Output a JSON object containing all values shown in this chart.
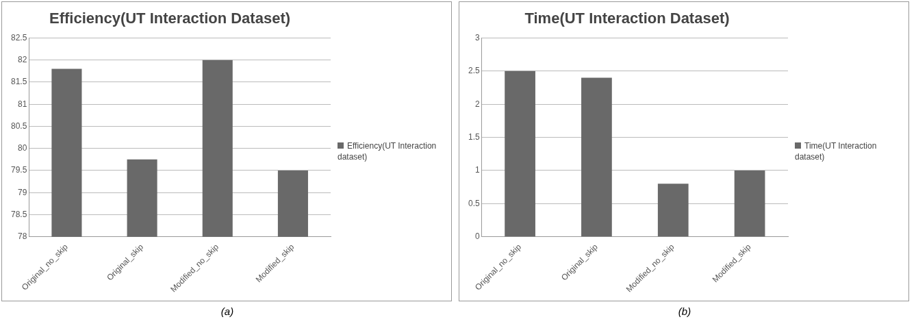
{
  "chart_data": [
    {
      "type": "bar",
      "title": "Efficiency(UT Interaction Dataset)",
      "categories": [
        "Original_no_skip",
        "Original_skip",
        "Modified_no_skip",
        "Modified_skip"
      ],
      "series": [
        {
          "name": "Efficiency(UT Interaction dataset)",
          "color": "#696969",
          "values": [
            81.8,
            79.75,
            82,
            79.5
          ]
        }
      ],
      "ylim": [
        78,
        82.5
      ],
      "yticks": [
        78,
        78.5,
        79,
        79.5,
        80,
        80.5,
        81,
        81.5,
        82,
        82.5
      ],
      "grid": "y",
      "legend": "right",
      "annotations": [
        "(a)"
      ]
    },
    {
      "type": "bar",
      "title": "Time(UT Interaction Dataset)",
      "categories": [
        "Original_no_skip",
        "Original_skip",
        "Modified_no_skip",
        "Modified_skip"
      ],
      "series": [
        {
          "name": "Time(UT Interaction dataset)",
          "color": "#696969",
          "values": [
            2.5,
            2.4,
            0.8,
            1.0
          ]
        }
      ],
      "ylim": [
        0,
        3
      ],
      "yticks": [
        0,
        0.5,
        1,
        1.5,
        2,
        2.5,
        3
      ],
      "grid": "y",
      "legend": "right",
      "annotations": [
        "(b)"
      ]
    }
  ]
}
